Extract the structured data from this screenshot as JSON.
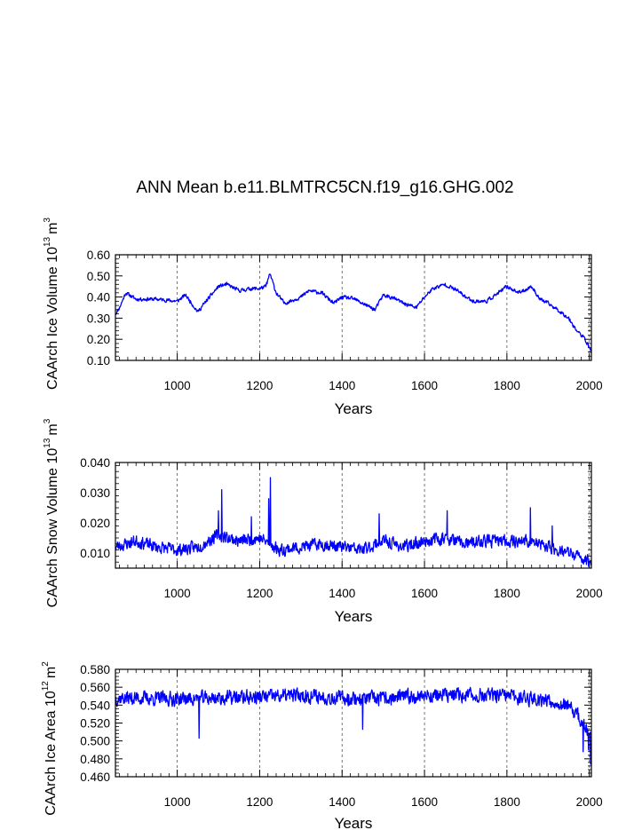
{
  "chart_data": [
    {
      "type": "line",
      "title": "ANN Mean b.e11.BLMTRC5CN.f19_g16.GHG.002",
      "xlabel": "Years",
      "ylabel": {
        "text": "CAArch Ice Volume 10",
        "exp": "13",
        "unit": "m",
        "unit_exp": "3"
      },
      "xlim": [
        850,
        2005
      ],
      "ylim": [
        0.1,
        0.6
      ],
      "yticks": [
        0.1,
        0.2,
        0.3,
        0.4,
        0.5,
        0.6
      ],
      "ytick_labels": [
        "0.10",
        "0.20",
        "0.30",
        "0.40",
        "0.50",
        "0.60"
      ],
      "xticks": [
        1000,
        1200,
        1400,
        1600,
        1800,
        2000
      ],
      "xtick_labels": [
        "1000",
        "1200",
        "1400",
        "1600",
        "1800",
        "2000"
      ],
      "line_color": "#0000ff",
      "grid_color": "#555555",
      "noise": 0.012,
      "seed": 11,
      "series": [
        {
          "name": "CAArch Ice Volume",
          "anchors": {
            "x": [
              850,
              860,
              875,
              900,
              950,
              1000,
              1020,
              1050,
              1070,
              1100,
              1120,
              1150,
              1180,
              1200,
              1215,
              1225,
              1240,
              1260,
              1300,
              1320,
              1350,
              1380,
              1400,
              1430,
              1450,
              1480,
              1500,
              1530,
              1550,
              1580,
              1600,
              1620,
              1650,
              1680,
              1700,
              1720,
              1750,
              1780,
              1800,
              1830,
              1860,
              1880,
              1900,
              1930,
              1950,
              1970,
              1990,
              2005
            ],
            "y": [
              0.32,
              0.35,
              0.42,
              0.39,
              0.39,
              0.38,
              0.41,
              0.33,
              0.38,
              0.45,
              0.46,
              0.43,
              0.44,
              0.44,
              0.45,
              0.51,
              0.42,
              0.37,
              0.4,
              0.43,
              0.42,
              0.37,
              0.4,
              0.39,
              0.37,
              0.34,
              0.41,
              0.39,
              0.37,
              0.35,
              0.4,
              0.44,
              0.46,
              0.43,
              0.4,
              0.38,
              0.38,
              0.42,
              0.45,
              0.42,
              0.45,
              0.39,
              0.37,
              0.33,
              0.3,
              0.24,
              0.2,
              0.14
            ]
          }
        }
      ]
    },
    {
      "type": "line",
      "title": "",
      "xlabel": "Years",
      "ylabel": {
        "text": "CAArch Snow Volume 10",
        "exp": "13",
        "unit": "m",
        "unit_exp": "3"
      },
      "xlim": [
        850,
        2005
      ],
      "ylim": [
        0.005,
        0.04
      ],
      "yticks": [
        0.01,
        0.02,
        0.03,
        0.04
      ],
      "ytick_labels": [
        "0.010",
        "0.020",
        "0.030",
        "0.040"
      ],
      "xticks": [
        1000,
        1200,
        1400,
        1600,
        1800,
        2000
      ],
      "xtick_labels": [
        "1000",
        "1200",
        "1400",
        "1600",
        "1800",
        "2000"
      ],
      "line_color": "#0000ff",
      "grid_color": "#555555",
      "noise": 0.0028,
      "seed": 23,
      "spikes": [
        [
          1108,
          0.031
        ],
        [
          1100,
          0.024
        ],
        [
          1180,
          0.022
        ],
        [
          1226,
          0.035
        ],
        [
          1222,
          0.028
        ],
        [
          1490,
          0.023
        ],
        [
          1655,
          0.024
        ],
        [
          1857,
          0.025
        ],
        [
          1910,
          0.019
        ]
      ],
      "series": [
        {
          "name": "CAArch Snow Volume",
          "anchors": {
            "x": [
              850,
              900,
              950,
              1000,
              1050,
              1100,
              1150,
              1200,
              1250,
              1300,
              1350,
              1400,
              1450,
              1500,
              1550,
              1600,
              1650,
              1700,
              1750,
              1800,
              1850,
              1900,
              1950,
              2005
            ],
            "y": [
              0.012,
              0.014,
              0.012,
              0.011,
              0.012,
              0.016,
              0.014,
              0.015,
              0.011,
              0.012,
              0.013,
              0.012,
              0.011,
              0.014,
              0.012,
              0.014,
              0.015,
              0.013,
              0.014,
              0.014,
              0.014,
              0.012,
              0.01,
              0.007
            ]
          }
        }
      ]
    },
    {
      "type": "line",
      "title": "",
      "xlabel": "Years",
      "ylabel": {
        "text": "CAArch Ice Area 10",
        "exp": "12",
        "unit": "m",
        "unit_exp": "2"
      },
      "xlim": [
        850,
        2005
      ],
      "ylim": [
        0.46,
        0.58
      ],
      "yticks": [
        0.46,
        0.48,
        0.5,
        0.52,
        0.54,
        0.56,
        0.58
      ],
      "ytick_labels": [
        "0.460",
        "0.480",
        "0.500",
        "0.520",
        "0.540",
        "0.560",
        "0.580"
      ],
      "xticks": [
        1000,
        1200,
        1400,
        1600,
        1800,
        2000
      ],
      "xtick_labels": [
        "1000",
        "1200",
        "1400",
        "1600",
        "1800",
        "2000"
      ],
      "line_color": "#0000ff",
      "grid_color": "#555555",
      "noise": 0.011,
      "seed": 37,
      "spikes": [
        [
          1053,
          0.503
        ],
        [
          1450,
          0.513
        ],
        [
          1985,
          0.488
        ],
        [
          1998,
          0.49
        ],
        [
          2003,
          0.474
        ]
      ],
      "series": [
        {
          "name": "CAArch Ice Area",
          "anchors": {
            "x": [
              850,
              900,
              1000,
              1100,
              1200,
              1300,
              1400,
              1500,
              1600,
              1700,
              1800,
              1900,
              1940,
              1970,
              1990,
              2005
            ],
            "y": [
              0.548,
              0.548,
              0.547,
              0.548,
              0.549,
              0.551,
              0.548,
              0.547,
              0.551,
              0.551,
              0.55,
              0.546,
              0.54,
              0.53,
              0.515,
              0.498
            ]
          }
        }
      ]
    }
  ]
}
